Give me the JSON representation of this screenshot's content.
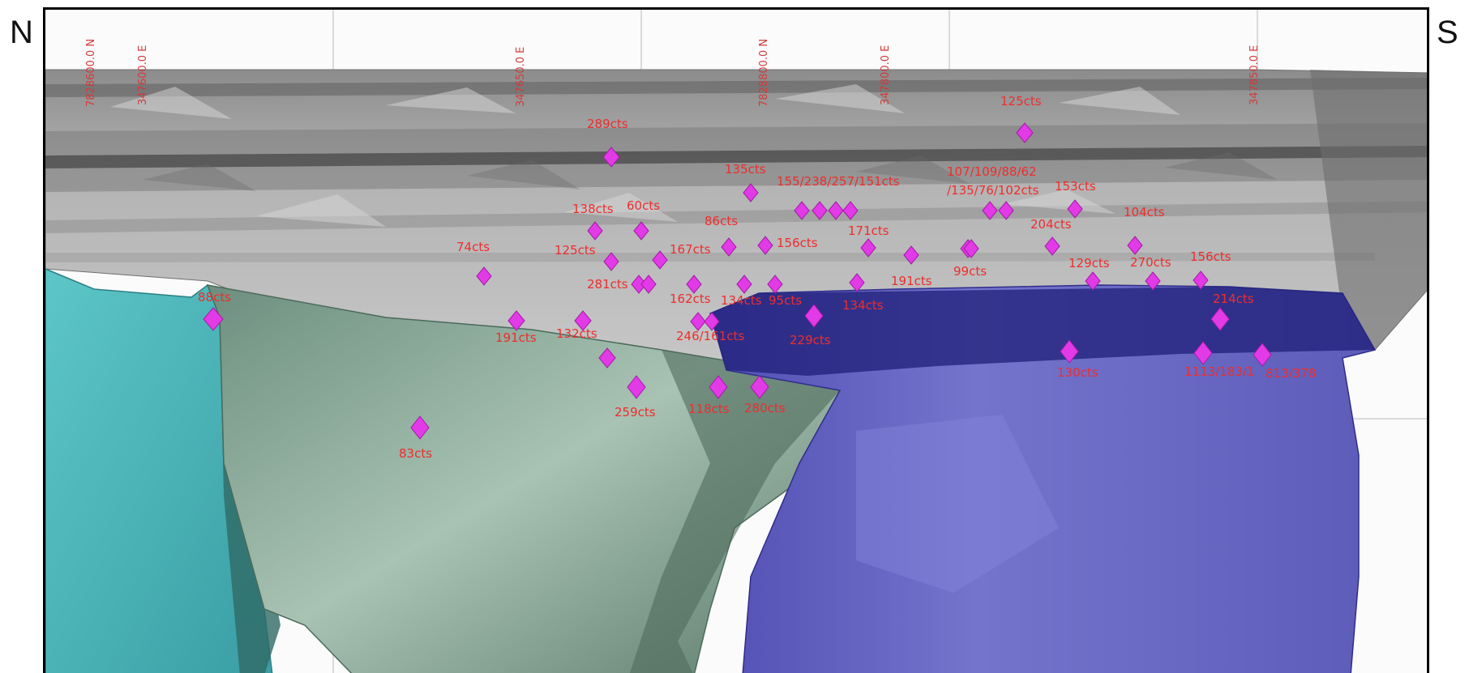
{
  "compass": {
    "left": "N",
    "right": "S"
  },
  "grid_labels": [
    {
      "text": "7828600.0 N"
    },
    {
      "text": "347600.0 E"
    },
    {
      "text": "347650.0 E"
    },
    {
      "text": "7828800.0 N"
    },
    {
      "text": "347800.0 E"
    },
    {
      "text": "347850.0 E"
    }
  ],
  "bodies": [
    {
      "name": "grey-host-rock",
      "color": "#a6a6a6"
    },
    {
      "name": "cyan-orebody",
      "color": "#4fb7bb"
    },
    {
      "name": "green-orebody",
      "color": "#7f9e8c"
    },
    {
      "name": "blue-orebody",
      "color": "#5a58b6"
    }
  ],
  "marker_color": "#e23ae6",
  "label_color": "#ee2d2d",
  "samples": [
    {
      "label": "125cts"
    },
    {
      "label": "289cts"
    },
    {
      "label": "135cts"
    },
    {
      "label": "155/238/257/151cts"
    },
    {
      "label": "107/109/88/62"
    },
    {
      "label": "/135/76/102cts"
    },
    {
      "label": "153cts"
    },
    {
      "label": "138cts"
    },
    {
      "label": "60cts"
    },
    {
      "label": "104cts"
    },
    {
      "label": "86cts"
    },
    {
      "label": "204cts"
    },
    {
      "label": "171cts"
    },
    {
      "label": "74cts"
    },
    {
      "label": "125cts"
    },
    {
      "label": "167cts"
    },
    {
      "label": "156cts"
    },
    {
      "label": "129cts"
    },
    {
      "label": "270cts"
    },
    {
      "label": "156cts"
    },
    {
      "label": "99cts"
    },
    {
      "label": "281cts"
    },
    {
      "label": "191cts"
    },
    {
      "label": "88cts"
    },
    {
      "label": "162cts"
    },
    {
      "label": "134cts"
    },
    {
      "label": "95cts"
    },
    {
      "label": "134cts"
    },
    {
      "label": "214cts"
    },
    {
      "label": "191cts"
    },
    {
      "label": "132cts"
    },
    {
      "label": "246/161cts"
    },
    {
      "label": "229cts"
    },
    {
      "label": "130cts"
    },
    {
      "label": "1113/183/1"
    },
    {
      "label": "813/378"
    },
    {
      "label": "259cts"
    },
    {
      "label": "118cts"
    },
    {
      "label": "280cts"
    },
    {
      "label": "83cts"
    }
  ]
}
